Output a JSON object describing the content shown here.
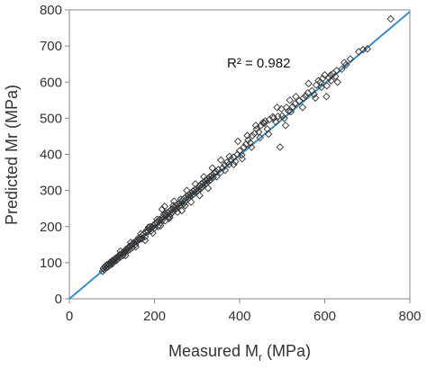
{
  "chart_data": {
    "type": "scatter",
    "xlabel": "Measured M",
    "xlabel_sub": "r",
    "xlabel_unit": " (MPa)",
    "ylabel": "Predicted Mr (MPa)",
    "xlim": [
      0,
      800
    ],
    "ylim": [
      0,
      800
    ],
    "xticks": [
      0,
      200,
      400,
      600,
      800
    ],
    "yticks": [
      0,
      100,
      200,
      300,
      400,
      500,
      600,
      700,
      800
    ],
    "grid": false,
    "legend": "none",
    "annotation": "R² = 0.982",
    "marker": "diamond-open",
    "trendline": {
      "x": [
        0,
        800
      ],
      "y": [
        0,
        795
      ],
      "color": "#3a8cc4"
    },
    "points": [
      [
        78,
        76
      ],
      [
        80,
        84
      ],
      [
        82,
        80
      ],
      [
        84,
        90
      ],
      [
        86,
        86
      ],
      [
        88,
        94
      ],
      [
        90,
        88
      ],
      [
        92,
        96
      ],
      [
        94,
        92
      ],
      [
        95,
        100
      ],
      [
        97,
        98
      ],
      [
        99,
        104
      ],
      [
        100,
        96
      ],
      [
        102,
        106
      ],
      [
        104,
        102
      ],
      [
        106,
        108
      ],
      [
        108,
        112
      ],
      [
        110,
        106
      ],
      [
        112,
        114
      ],
      [
        114,
        110
      ],
      [
        116,
        118
      ],
      [
        118,
        122
      ],
      [
        120,
        116
      ],
      [
        122,
        124
      ],
      [
        124,
        126
      ],
      [
        126,
        120
      ],
      [
        128,
        130
      ],
      [
        130,
        128
      ],
      [
        132,
        134
      ],
      [
        134,
        138
      ],
      [
        136,
        132
      ],
      [
        138,
        140
      ],
      [
        140,
        144
      ],
      [
        142,
        136
      ],
      [
        144,
        146
      ],
      [
        146,
        150
      ],
      [
        148,
        142
      ],
      [
        150,
        152
      ],
      [
        152,
        156
      ],
      [
        155,
        150
      ],
      [
        158,
        158
      ],
      [
        160,
        162
      ],
      [
        162,
        168
      ],
      [
        165,
        164
      ],
      [
        168,
        170
      ],
      [
        170,
        166
      ],
      [
        172,
        176
      ],
      [
        175,
        180
      ],
      [
        178,
        172
      ],
      [
        180,
        184
      ],
      [
        182,
        190
      ],
      [
        185,
        186
      ],
      [
        188,
        192
      ],
      [
        190,
        200
      ],
      [
        192,
        188
      ],
      [
        195,
        198
      ],
      [
        198,
        204
      ],
      [
        200,
        196
      ],
      [
        202,
        206
      ],
      [
        205,
        212
      ],
      [
        208,
        200
      ],
      [
        210,
        214
      ],
      [
        212,
        220
      ],
      [
        215,
        210
      ],
      [
        218,
        218
      ],
      [
        220,
        226
      ],
      [
        222,
        234
      ],
      [
        225,
        216
      ],
      [
        228,
        230
      ],
      [
        230,
        238
      ],
      [
        232,
        226
      ],
      [
        235,
        242
      ],
      [
        238,
        234
      ],
      [
        240,
        248
      ],
      [
        242,
        240
      ],
      [
        245,
        252
      ],
      [
        248,
        246
      ],
      [
        250,
        258
      ],
      [
        252,
        250
      ],
      [
        255,
        262
      ],
      [
        258,
        256
      ],
      [
        260,
        266
      ],
      [
        262,
        260
      ],
      [
        265,
        272
      ],
      [
        268,
        262
      ],
      [
        270,
        278
      ],
      [
        272,
        270
      ],
      [
        275,
        284
      ],
      [
        278,
        276
      ],
      [
        280,
        288
      ],
      [
        282,
        282
      ],
      [
        285,
        292
      ],
      [
        288,
        286
      ],
      [
        290,
        298
      ],
      [
        292,
        290
      ],
      [
        295,
        302
      ],
      [
        298,
        296
      ],
      [
        300,
        306
      ],
      [
        302,
        300
      ],
      [
        305,
        312
      ],
      [
        308,
        304
      ],
      [
        310,
        318
      ],
      [
        312,
        310
      ],
      [
        315,
        322
      ],
      [
        318,
        316
      ],
      [
        320,
        328
      ],
      [
        322,
        320
      ],
      [
        325,
        332
      ],
      [
        328,
        326
      ],
      [
        330,
        338
      ],
      [
        332,
        330
      ],
      [
        335,
        342
      ],
      [
        338,
        336
      ],
      [
        340,
        348
      ],
      [
        345,
        352
      ],
      [
        350,
        358
      ],
      [
        355,
        350
      ],
      [
        360,
        362
      ],
      [
        365,
        370
      ],
      [
        370,
        378
      ],
      [
        375,
        372
      ],
      [
        380,
        386
      ],
      [
        385,
        392
      ],
      [
        390,
        380
      ],
      [
        395,
        400
      ],
      [
        400,
        410
      ],
      [
        405,
        398
      ],
      [
        410,
        420
      ],
      [
        415,
        428
      ],
      [
        420,
        440
      ],
      [
        425,
        432
      ],
      [
        430,
        452
      ],
      [
        435,
        458
      ],
      [
        440,
        470
      ],
      [
        445,
        462
      ],
      [
        450,
        480
      ],
      [
        455,
        488
      ],
      [
        460,
        492
      ],
      [
        465,
        470
      ],
      [
        470,
        496
      ],
      [
        480,
        500
      ],
      [
        485,
        490
      ],
      [
        490,
        505
      ],
      [
        495,
        420
      ],
      [
        500,
        506
      ],
      [
        505,
        500
      ],
      [
        510,
        530
      ],
      [
        515,
        520
      ],
      [
        520,
        518
      ],
      [
        525,
        532
      ],
      [
        530,
        540
      ],
      [
        540,
        548
      ],
      [
        550,
        556
      ],
      [
        555,
        562
      ],
      [
        560,
        570
      ],
      [
        570,
        576
      ],
      [
        575,
        566
      ],
      [
        580,
        592
      ],
      [
        585,
        604
      ],
      [
        590,
        600
      ],
      [
        595,
        610
      ],
      [
        600,
        620
      ],
      [
        605,
        590
      ],
      [
        610,
        612
      ],
      [
        615,
        604
      ],
      [
        620,
        624
      ],
      [
        625,
        616
      ],
      [
        628,
        632
      ],
      [
        640,
        636
      ],
      [
        650,
        648
      ],
      [
        660,
        664
      ],
      [
        680,
        684
      ],
      [
        690,
        690
      ],
      [
        700,
        692
      ],
      [
        755,
        775
      ],
      [
        218,
        248
      ],
      [
        224,
        256
      ],
      [
        236,
        226
      ],
      [
        246,
        270
      ],
      [
        264,
        244
      ],
      [
        276,
        300
      ],
      [
        286,
        268
      ],
      [
        296,
        318
      ],
      [
        306,
        286
      ],
      [
        316,
        338
      ],
      [
        326,
        306
      ],
      [
        336,
        362
      ],
      [
        346,
        338
      ],
      [
        356,
        384
      ],
      [
        366,
        356
      ],
      [
        376,
        394
      ],
      [
        386,
        372
      ],
      [
        396,
        436
      ],
      [
        406,
        388
      ],
      [
        418,
        452
      ],
      [
        428,
        420
      ],
      [
        438,
        480
      ],
      [
        448,
        446
      ],
      [
        458,
        486
      ],
      [
        468,
        456
      ],
      [
        478,
        504
      ],
      [
        488,
        530
      ],
      [
        498,
        526
      ],
      [
        508,
        480
      ],
      [
        518,
        550
      ],
      [
        532,
        560
      ],
      [
        548,
        530
      ],
      [
        562,
        596
      ],
      [
        578,
        556
      ],
      [
        592,
        586
      ],
      [
        604,
        560
      ],
      [
        614,
        620
      ],
      [
        630,
        600
      ],
      [
        646,
        654
      ],
      [
        120,
        132
      ],
      [
        132,
        120
      ],
      [
        144,
        156
      ],
      [
        156,
        144
      ],
      [
        168,
        180
      ],
      [
        178,
        162
      ],
      [
        186,
        198
      ],
      [
        196,
        182
      ],
      [
        206,
        220
      ],
      [
        214,
        202
      ],
      [
        226,
        236
      ],
      [
        234,
        222
      ],
      [
        244,
        258
      ],
      [
        254,
        240
      ],
      [
        262,
        276
      ],
      [
        272,
        258
      ]
    ]
  }
}
